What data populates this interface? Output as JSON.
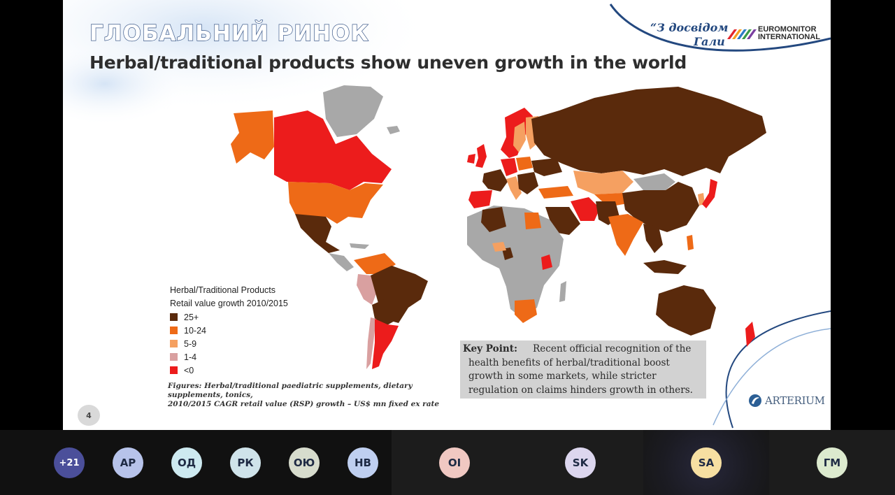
{
  "slide": {
    "heading": "ГЛОБАЛЬНИЙ РИНОК",
    "subtitle": "Herbal/traditional products show uneven growth in the world",
    "tagline_line1": "“З досвідом",
    "tagline_line2": "Гали",
    "brand_line1": "EUROMONITOR",
    "brand_line2": "INTERNATIONAL",
    "legend": {
      "title_line1": "Herbal/Traditional Products",
      "title_line2": "Retail value growth 2010/2015",
      "items": [
        {
          "label": "25+",
          "color": "#5a2a0c"
        },
        {
          "label": "10-24",
          "color": "#ee6a17"
        },
        {
          "label": "5-9",
          "color": "#f5a061"
        },
        {
          "label": "1-4",
          "color": "#d9a0a0"
        },
        {
          "label": "<0",
          "color": "#ec1c1c"
        }
      ],
      "no_data_color": "#a8a8a8"
    },
    "caption_line1": "Figures: Herbal/traditional paediatric supplements, dietary supplements, tonics,",
    "caption_line2": "2010/2015 CAGR retail value (RSP) growth – US$ mn fixed ex rate",
    "key_point_label": "Key Point:",
    "key_point_text": "Recent official recognition of the health benefits of herbal/traditional boost growth in some markets, while stricter regulation on claims hinders growth in others.",
    "page_number": "4",
    "company_logo": "ARTERIUM"
  },
  "participants": [
    {
      "initials": "+21",
      "color": "#4b4f9a",
      "text_color": "#ffffff"
    },
    {
      "initials": "АР",
      "color": "#b7c3ea",
      "text_color": "#1e2a44"
    },
    {
      "initials": "ОД",
      "color": "#cde9f0",
      "text_color": "#1e2a44"
    },
    {
      "initials": "РК",
      "color": "#cfe3ea",
      "text_color": "#1e2a44"
    },
    {
      "initials": "ОЮ",
      "color": "#d7dccd",
      "text_color": "#1e2a44"
    },
    {
      "initials": "НВ",
      "color": "#bfcff0",
      "text_color": "#1e2a44"
    },
    {
      "initials": "OI",
      "color": "#f0c8c2",
      "text_color": "#1e2a44"
    },
    {
      "initials": "SK",
      "color": "#dcd6ee",
      "text_color": "#1e2a44"
    },
    {
      "initials": "SA",
      "color": "#f6dfa2",
      "text_color": "#1e2a44"
    },
    {
      "initials": "ГМ",
      "color": "#dceace",
      "text_color": "#1e2a44"
    }
  ]
}
